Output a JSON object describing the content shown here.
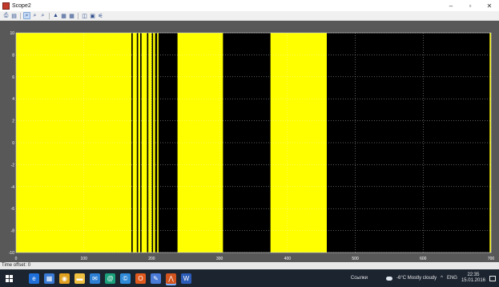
{
  "window": {
    "title": "Scope2",
    "controls": {
      "minimize": "–",
      "maximize": "▫",
      "close": "✕"
    }
  },
  "toolbar": {
    "buttons": [
      {
        "name": "print-icon",
        "glyph": "⎙"
      },
      {
        "name": "parameters-icon",
        "glyph": "▤"
      },
      {
        "name": "zoom-icon",
        "glyph": "⌕",
        "active": true
      },
      {
        "name": "zoom-x-icon",
        "glyph": "⌕"
      },
      {
        "name": "zoom-y-icon",
        "glyph": "⌕"
      },
      {
        "name": "autoscale-icon",
        "glyph": "▲"
      },
      {
        "name": "save-axes-icon",
        "glyph": "▦"
      },
      {
        "name": "restore-axes-icon",
        "glyph": "▦"
      },
      {
        "name": "floating-scope-icon",
        "glyph": "◫"
      },
      {
        "name": "lock-axes-icon",
        "glyph": "▣"
      },
      {
        "name": "signal-selection-icon",
        "glyph": "⚟"
      }
    ]
  },
  "chart_data": {
    "type": "line",
    "title": "",
    "xlabel": "",
    "ylabel": "",
    "xlim": [
      0,
      700
    ],
    "ylim": [
      -10,
      10
    ],
    "grid": true,
    "x_ticks": [
      0,
      100,
      200,
      300,
      400,
      500,
      600,
      700
    ],
    "y_ticks": [
      10,
      8,
      6,
      4,
      2,
      0,
      -2,
      -4,
      -6,
      -8,
      -10
    ],
    "series": [
      {
        "color": "#ffff00",
        "filled_intervals": [
          [
            0,
            170
          ],
          [
            172,
            178
          ],
          [
            180,
            183
          ],
          [
            185,
            193
          ],
          [
            195,
            200
          ],
          [
            202,
            205
          ],
          [
            208,
            210
          ],
          [
            238,
            305
          ],
          [
            375,
            458
          ],
          [
            698,
            700
          ]
        ]
      }
    ],
    "colors": {
      "background": "#000000",
      "trace": "#ffff00",
      "axes_frame": "#585858",
      "tick_text": "#ffffff",
      "grid": "#ffffff"
    }
  },
  "status": {
    "time_offset_label": "Time offset:",
    "time_offset_value": "0"
  },
  "taskbar": {
    "apps": [
      {
        "name": "edge-icon",
        "glyph": "e",
        "color": "#1e6fd9"
      },
      {
        "name": "calculator-icon",
        "glyph": "▦",
        "color": "#3a7bd5"
      },
      {
        "name": "chrome-icon",
        "glyph": "◉",
        "color": "#e0a020"
      },
      {
        "name": "file-explorer-icon",
        "glyph": "▬",
        "color": "#f0c040"
      },
      {
        "name": "mail-icon",
        "glyph": "✉",
        "color": "#2d7fd3"
      },
      {
        "name": "app-at-icon",
        "glyph": "@",
        "color": "#1aa07a"
      },
      {
        "name": "app-c-icon",
        "glyph": "©",
        "color": "#2f8ad8"
      },
      {
        "name": "office-icon",
        "glyph": "O",
        "color": "#e05a1e"
      },
      {
        "name": "notes-icon",
        "glyph": "✎",
        "color": "#4a7bd8"
      },
      {
        "name": "matlab-icon",
        "glyph": "⋀",
        "color": "#d2541e",
        "active": true
      },
      {
        "name": "word-icon",
        "glyph": "W",
        "color": "#2b5cb8"
      }
    ],
    "links_label": "Ссылки",
    "weather": "-6°C  Mostly cloudy",
    "language": "ENG",
    "time": "22:35",
    "date": "15.01.2016"
  }
}
